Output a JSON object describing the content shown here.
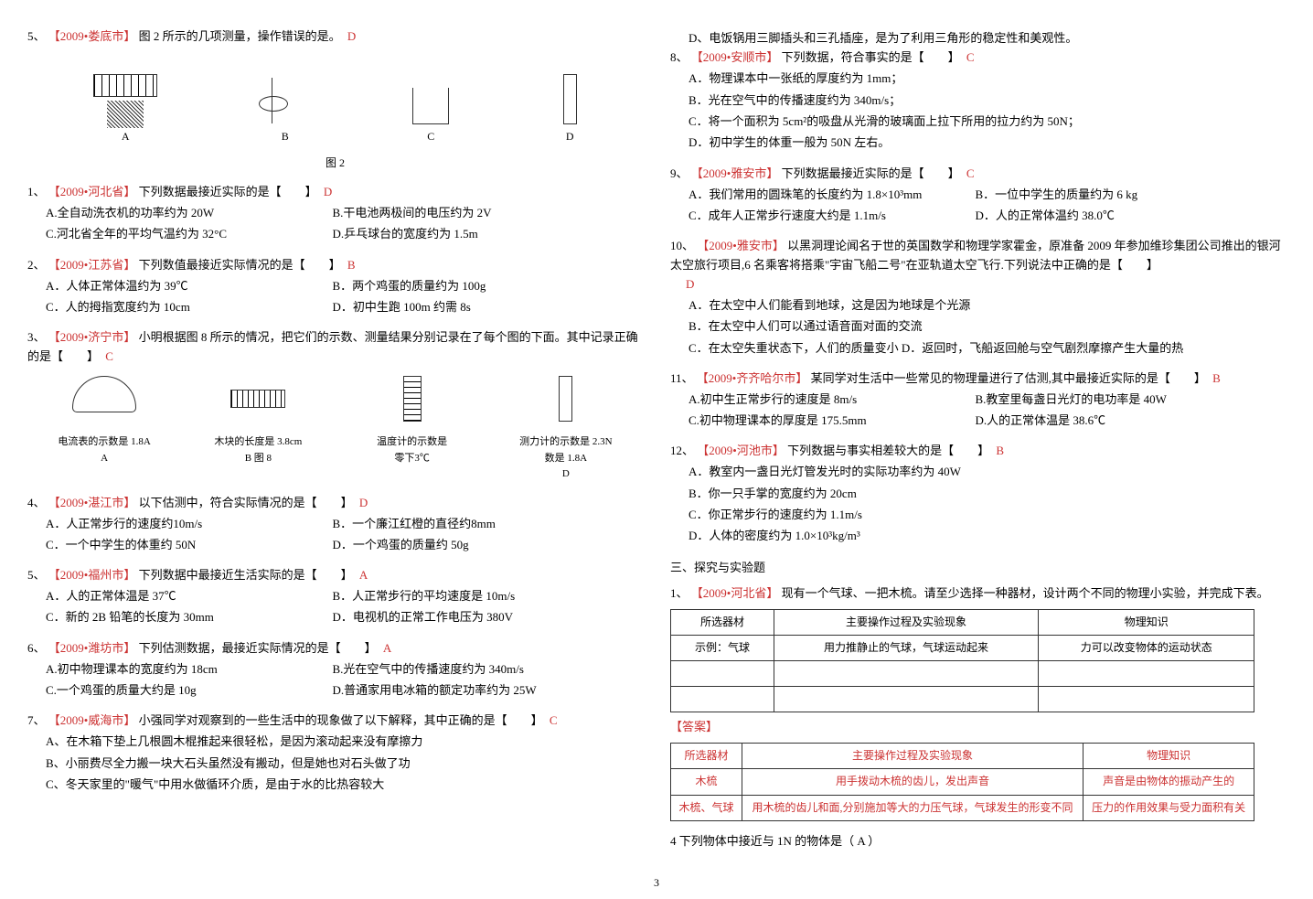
{
  "pageNumber": "3",
  "leftColumn": {
    "q5top": {
      "num": "5、",
      "city": "【2009•娄底市】",
      "text": "图 2 所示的几项测量，操作错误的是。",
      "answer": "D",
      "figLabel": "图 2",
      "labels": [
        "A",
        "B",
        "C",
        "D"
      ]
    },
    "q1": {
      "num": "1、",
      "city": "【2009•河北省】",
      "text": "下列数据最接近实际的是【　　】",
      "answer": "D",
      "opts": {
        "a": "A.全自动洗衣机的功率约为 20W",
        "b": "B.干电池两极间的电压约为 2V",
        "c": "C.河北省全年的平均气温约为 32°C",
        "d": "D.乒乓球台的宽度约为 1.5m"
      }
    },
    "q2": {
      "num": "2、",
      "city": "【2009•江苏省】",
      "text": "下列数值最接近实际情况的是【　　】",
      "answer": "B",
      "opts": {
        "a": "A．人体正常体温约为 39℃",
        "b": "B．两个鸡蛋的质量约为 100g",
        "c": "C．人的拇指宽度约为 10cm",
        "d": "D．初中生跑 100m 约需 8s"
      }
    },
    "q3": {
      "num": "3、",
      "city": "【2009•济宁市】",
      "text": "小明根据图 8 所示的情况，把它们的示数、测量结果分别记录在了每个图的下面。其中记录正确的是【　　】",
      "answer": "C",
      "meters": {
        "a": {
          "line1": "电流表的示数是 1.8A",
          "label": "A"
        },
        "b": {
          "line1": "木块的长度是 3.8cm",
          "label": "B  图 8"
        },
        "c": {
          "line1": "温度计的示数是",
          "line2": "零下3℃"
        },
        "d": {
          "line1": "测力计的示数是 2.3N",
          "line2": "数是 1.8A",
          "label": "D"
        }
      }
    },
    "q4": {
      "num": "4、",
      "city": "【2009•湛江市】",
      "text": "以下估测中，符合实际情况的是【　　】",
      "answer": "D",
      "opts": {
        "a": "A．人正常步行的速度约10m/s",
        "b": "B．一个廉江红橙的直径约8mm",
        "c": "C．一个中学生的体重约 50N",
        "d": "D．一个鸡蛋的质量约 50g"
      }
    },
    "q5": {
      "num": "5、",
      "city": "【2009•福州市】",
      "text": "下列数据中最接近生活实际的是【　　】",
      "answer": "A",
      "opts": {
        "a": "A．人的正常体温是 37℃",
        "b": "B．人正常步行的平均速度是 10m/s",
        "c": "C．新的 2B 铅笔的长度为 30mm",
        "d": "D．电视机的正常工作电压为 380V"
      }
    },
    "q6": {
      "num": "6、",
      "city": "【2009•潍坊市】",
      "text": "下列估测数据，最接近实际情况的是【　　】",
      "answer": "A",
      "opts": {
        "a": "A.初中物理课本的宽度约为 18cm",
        "b": "B.光在空气中的传播速度约为 340m/s",
        "c": "C.一个鸡蛋的质量大约是 10g",
        "d": "D.普通家用电冰箱的额定功率约为 25W"
      }
    },
    "q7": {
      "num": "7、",
      "city": "【2009•威海市】",
      "text": "小强同学对观察到的一些生活中的现象做了以下解释，其中正确的是【　　】",
      "answer": "C",
      "opts": {
        "a": "A、在木箱下垫上几根圆木棍推起来很轻松，是因为滚动起来没有摩擦力",
        "b": "B、小丽费尽全力搬一块大石头虽然没有搬动，但是她也对石头做了功",
        "c": "C、冬天家里的\"暖气\"中用水做循环介质，是由于水的比热容较大"
      }
    }
  },
  "rightColumn": {
    "q7d": "D、电饭锅用三脚插头和三孔插座，是为了利用三角形的稳定性和美观性。",
    "q8": {
      "num": "8、",
      "city": "【2009•安顺市】",
      "text": "下列数据，符合事实的是【　　】",
      "answer": "C",
      "opts": {
        "a": "A．物理课本中一张纸的厚度约为 1mm；",
        "b": "B．光在空气中的传播速度约为 340m/s；",
        "c": "C．将一个面积为 5cm²的吸盘从光滑的玻璃面上拉下所用的拉力约为 50N；",
        "d": "D．初中学生的体重一般为 50N 左右。"
      }
    },
    "q9": {
      "num": "9、",
      "city": "【2009•雅安市】",
      "text": "下列数据最接近实际的是【　　】",
      "answer": "C",
      "opts": {
        "a": "A．我们常用的圆珠笔的长度约为 1.8×10³mm",
        "b": "B．一位中学生的质量约为 6 kg",
        "c": "C．成年人正常步行速度大约是 1.1m/s",
        "d": "D．人的正常体温约 38.0℃"
      }
    },
    "q10": {
      "num": "10、",
      "city": "【2009•雅安市】",
      "text": "以黑洞理论闻名于世的英国数学和物理学家霍金，原准备 2009 年参加维珍集团公司推出的银河太空旅行项目,6 名乘客将搭乘\"宇宙飞船二号\"在亚轨道太空飞行.下列说法中正确的是【　　】",
      "answer": "D",
      "opts": {
        "a": "A．在太空中人们能看到地球，这是因为地球是个光源",
        "b": "B．在太空中人们可以通过语音面对面的交流",
        "c": "C．在太空失重状态下，人们的质量变小 D．返回时，飞船返回舱与空气剧烈摩擦产生大量的热"
      }
    },
    "q11": {
      "num": "11、",
      "city": "【2009•齐齐哈尔市】",
      "text": "某同学对生活中一些常见的物理量进行了估测,其中最接近实际的是【　　】",
      "answer": "B",
      "opts": {
        "a": "A.初中生正常步行的速度是 8m/s",
        "b": "B.教室里每盏日光灯的电功率是 40W",
        "c": "C.初中物理课本的厚度是 175.5mm",
        "d": "D.人的正常体温是 38.6℃"
      }
    },
    "q12": {
      "num": "12、",
      "city": "【2009•河池市】",
      "text": "下列数据与事实相差较大的是【　　】",
      "answer": "B",
      "opts": {
        "a": "A．教室内一盏日光灯管发光时的实际功率约为 40W",
        "b": "B．你一只手掌的宽度约为 20cm",
        "c": "C．你正常步行的速度约为 1.1m/s",
        "d": "D．人体的密度约为 1.0×10³kg/m³"
      }
    },
    "section3": "三、探究与实验题",
    "exp1": {
      "num": "1、",
      "city": "【2009•河北省】",
      "text": "现有一个气球、一把木梳。请至少选择一种器材，设计两个不同的物理小实验，并完成下表。",
      "table1": {
        "headers": [
          "所选器材",
          "主要操作过程及实验现象",
          "物理知识"
        ],
        "row1": [
          "示例：气球",
          "用力推静止的气球，气球运动起来",
          "力可以改变物体的运动状态"
        ]
      },
      "answerLabel": "【答案】",
      "table2": {
        "headers": [
          "所选器材",
          "主要操作过程及实验现象",
          "物理知识"
        ],
        "row1": [
          "木梳",
          "用手拨动木梳的齿儿，发出声音",
          "声音是由物体的振动产生的"
        ],
        "row2": [
          "木梳、气球",
          "用木梳的齿儿和面,分别施加等大的力压气球，气球发生的形变不同",
          "压力的作用效果与受力面积有关"
        ]
      }
    },
    "q4bottom": {
      "text": "4 下列物体中接近与 1N 的物体是（ A ）"
    }
  }
}
